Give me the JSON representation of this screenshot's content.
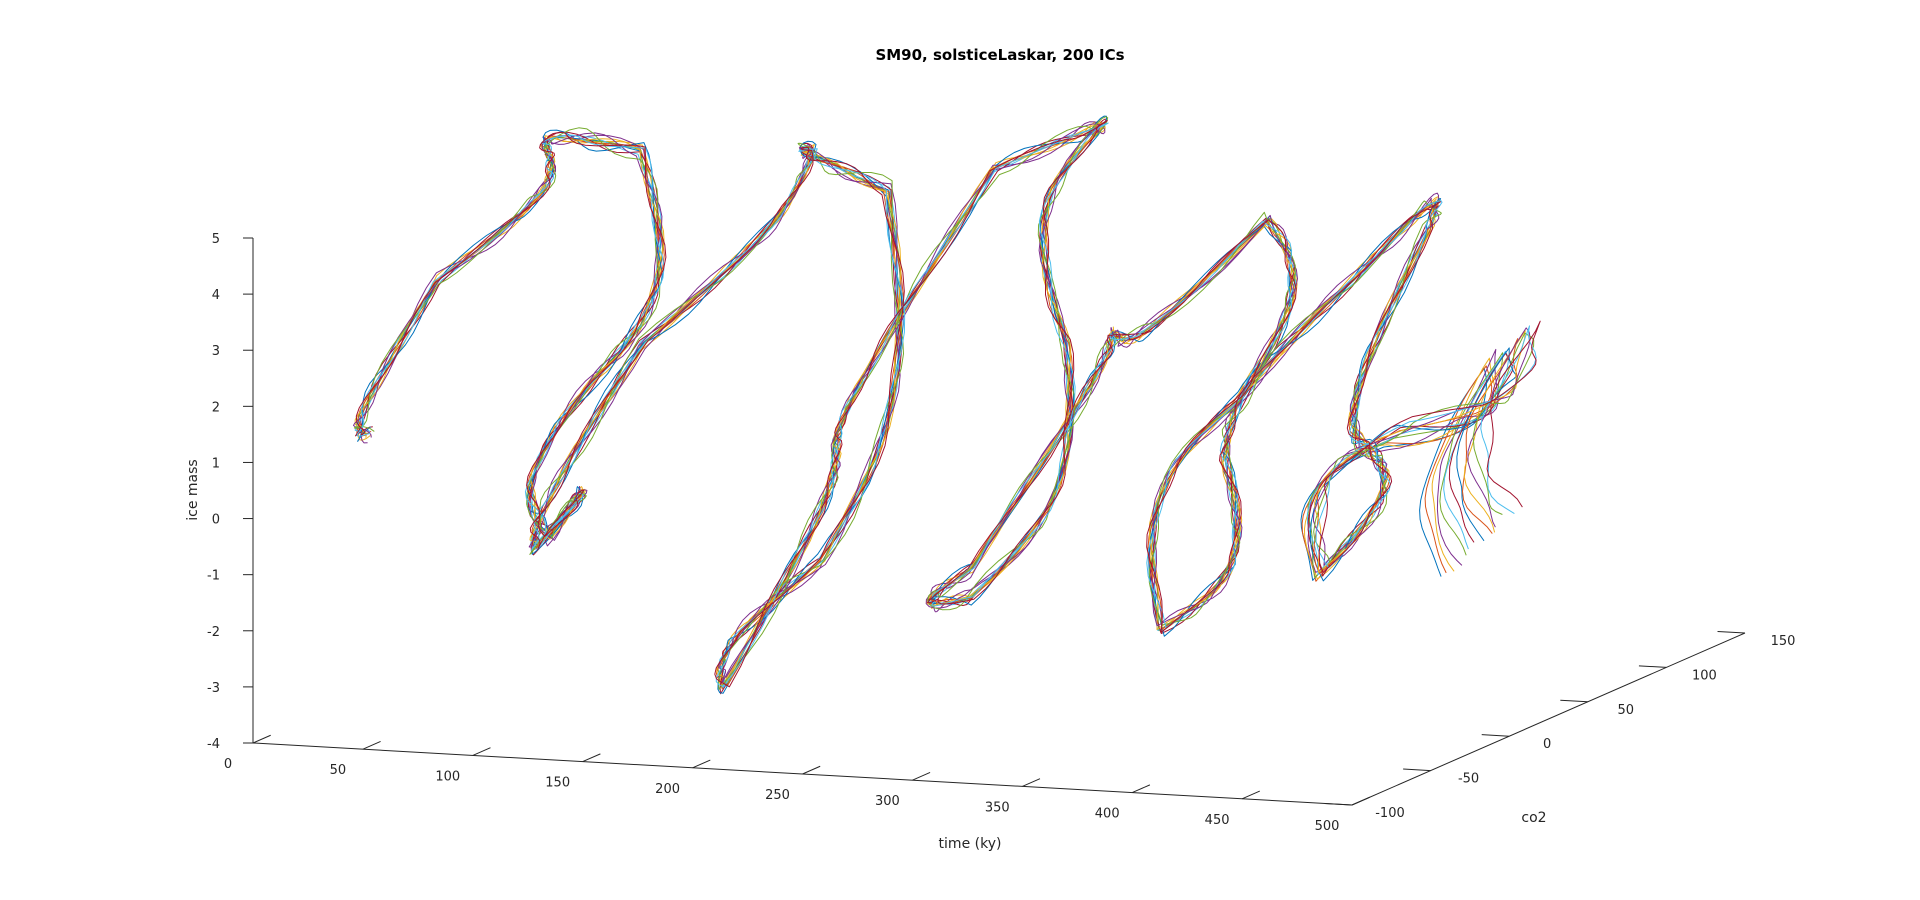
{
  "chart_data": {
    "type": "line",
    "title": "SM90, solsticeLaskar, 200 ICs",
    "xlabel": "time (ky)",
    "ylabel": "co2",
    "zlabel": "ice mass",
    "x_ticks": [
      "0",
      "50",
      "100",
      "150",
      "200",
      "250",
      "300",
      "350",
      "400",
      "450",
      "500"
    ],
    "y_ticks": [
      "-100",
      "-50",
      "0",
      "50",
      "100",
      "150"
    ],
    "z_ticks": [
      "-4",
      "-3",
      "-2",
      "-1",
      "0",
      "1",
      "2",
      "3",
      "4",
      "5"
    ],
    "xlim": [
      0,
      500
    ],
    "ylim": [
      -100,
      150
    ],
    "zlim": [
      -4,
      5
    ],
    "grid": false,
    "series_count": 200,
    "colors": [
      "#0072bd",
      "#d95319",
      "#edb120",
      "#7e2f8e",
      "#77ac30",
      "#4dbeee",
      "#a2142f"
    ],
    "series": [
      {
        "values": [
          [
            10,
            -40,
            0.8
          ],
          [
            20,
            -10,
            3.2
          ],
          [
            35,
            40,
            4.8
          ],
          [
            55,
            70,
            4.6
          ],
          [
            70,
            20,
            1.2
          ],
          [
            85,
            -30,
            -1.0
          ],
          [
            100,
            -60,
            -0.8
          ],
          [
            120,
            -20,
            2.4
          ],
          [
            140,
            60,
            4.9
          ],
          [
            160,
            80,
            4.0
          ],
          [
            180,
            10,
            -1.7
          ],
          [
            200,
            -80,
            -2.8
          ],
          [
            215,
            -30,
            1.0
          ],
          [
            230,
            50,
            4.9
          ],
          [
            250,
            90,
            5.2
          ],
          [
            270,
            40,
            2.0
          ],
          [
            290,
            -50,
            -1.4
          ],
          [
            305,
            -70,
            -0.6
          ],
          [
            320,
            0,
            2.8
          ],
          [
            340,
            70,
            4.0
          ],
          [
            355,
            30,
            1.3
          ],
          [
            370,
            -40,
            -1.9
          ],
          [
            385,
            -20,
            0.9
          ],
          [
            400,
            40,
            3.4
          ],
          [
            420,
            60,
            4.1
          ],
          [
            435,
            0,
            1.0
          ],
          [
            450,
            -50,
            -0.6
          ],
          [
            465,
            -20,
            1.6
          ],
          [
            480,
            30,
            2.6
          ],
          [
            495,
            -10,
            -0.4
          ]
        ]
      }
    ]
  }
}
